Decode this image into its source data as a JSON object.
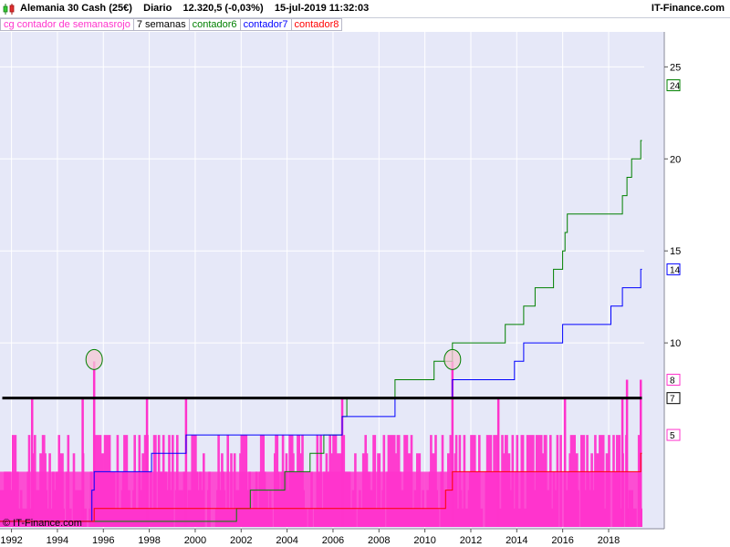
{
  "header": {
    "instrument": "Alemania 30 Cash (25€)",
    "period": "Diario",
    "price": "12.320,5 (-0,03%)",
    "datetime": "15-jul-2019 11:32:03",
    "brand": "IT-Finance.com"
  },
  "legend": [
    {
      "label": "cg contador de semanasrojo",
      "color": "#ff33cc"
    },
    {
      "label": "7 semanas",
      "color": "#000000"
    },
    {
      "label": "contador6",
      "color": "#008000"
    },
    {
      "label": "contador7",
      "color": "#0000ff"
    },
    {
      "label": "contador8",
      "color": "#ff0000"
    }
  ],
  "watermark": "© IT-Finance.com",
  "colors": {
    "plot_background": "#e6e8f8",
    "grid": "#ffffff",
    "histogram": "#ff33cc",
    "contador6": "#008000",
    "contador7": "#0000ff",
    "contador8": "#ff0000",
    "threshold": "#000000"
  },
  "chart_data": {
    "type": "line",
    "x_unit": "year",
    "xlim": [
      1991.5,
      2019.55
    ],
    "ylim": [
      -0.1,
      26.9
    ],
    "grid": true,
    "legend_position": "top-left",
    "x_ticks": [
      {
        "value": 1992,
        "label": "1992"
      },
      {
        "value": 1994,
        "label": "1994"
      },
      {
        "value": 1996,
        "label": "1996"
      },
      {
        "value": 1998,
        "label": "1998"
      },
      {
        "value": 2000,
        "label": "2000"
      },
      {
        "value": 2002,
        "label": "2002"
      },
      {
        "value": 2004,
        "label": "2004"
      },
      {
        "value": 2006,
        "label": "2006"
      },
      {
        "value": 2008,
        "label": "2008"
      },
      {
        "value": 2010,
        "label": "2010"
      },
      {
        "value": 2012,
        "label": "2012"
      },
      {
        "value": 2014,
        "label": "2014"
      },
      {
        "value": 2016,
        "label": "2016"
      },
      {
        "value": 2018,
        "label": "2018"
      }
    ],
    "y_ticks": [
      {
        "value": 10,
        "label": "10"
      },
      {
        "value": 15,
        "label": "15"
      },
      {
        "value": 20,
        "label": "20"
      },
      {
        "value": 25,
        "label": "25"
      }
    ],
    "markers": [
      {
        "value": 24,
        "label": "24",
        "color": "#008000"
      },
      {
        "value": 14,
        "label": "14",
        "color": "#0000ff"
      },
      {
        "value": 8,
        "label": "8",
        "color": "#ff33cc"
      },
      {
        "value": 7,
        "label": "7",
        "color": "#000000"
      },
      {
        "value": 5,
        "label": "5",
        "color": "#ff33cc"
      }
    ],
    "threshold": 7,
    "histogram": {
      "name": "cg contador de semanasrojo",
      "spikes": [
        {
          "x": 1992.9,
          "y": 7
        },
        {
          "x": 1995.1,
          "y": 7
        },
        {
          "x": 1995.6,
          "y": 9
        },
        {
          "x": 1997.9,
          "y": 7
        },
        {
          "x": 1999.6,
          "y": 7
        },
        {
          "x": 2006.4,
          "y": 7
        },
        {
          "x": 2011.2,
          "y": 9
        },
        {
          "x": 2013.2,
          "y": 7
        },
        {
          "x": 2016.1,
          "y": 7
        },
        {
          "x": 2018.6,
          "y": 7
        },
        {
          "x": 2018.8,
          "y": 8
        },
        {
          "x": 2019.4,
          "y": 8
        }
      ]
    },
    "highlights": [
      {
        "x": 1995.6,
        "y": 9
      },
      {
        "x": 2011.2,
        "y": 9
      }
    ],
    "series": [
      {
        "name": "contador6",
        "color": "#008000",
        "steps": [
          [
            1991.5,
            -1
          ],
          [
            1999.6,
            5
          ],
          [
            1999.75,
            6
          ],
          [
            2000.0,
            7
          ],
          [
            2000.8,
            8
          ],
          [
            2001.8,
            9
          ],
          [
            2002.4,
            10
          ],
          [
            2003.9,
            11
          ],
          [
            2005.0,
            12
          ],
          [
            2005.6,
            13
          ],
          [
            2006.4,
            14
          ],
          [
            2006.6,
            15
          ],
          [
            2008.7,
            16
          ],
          [
            2010.4,
            17
          ],
          [
            2011.2,
            18
          ],
          [
            2013.5,
            19
          ],
          [
            2014.3,
            20
          ],
          [
            2014.8,
            21
          ],
          [
            2015.6,
            22
          ],
          [
            2016.0,
            23
          ],
          [
            2016.1,
            24
          ],
          [
            2016.2,
            25
          ],
          [
            2018.6,
            26
          ],
          [
            2018.8,
            27
          ],
          [
            2019.0,
            28
          ],
          [
            2019.4,
            29
          ]
        ],
        "base": -8
      },
      {
        "name": "contador7",
        "color": "#0000ff",
        "steps": [
          [
            1991.5,
            1
          ],
          [
            1995.5,
            3
          ],
          [
            1995.6,
            4
          ],
          [
            1998.1,
            5
          ],
          [
            1999.6,
            6
          ],
          [
            2002.4,
            6
          ],
          [
            2006.4,
            7
          ],
          [
            2008.7,
            8
          ],
          [
            2011.2,
            9
          ],
          [
            2013.9,
            10
          ],
          [
            2014.3,
            11
          ],
          [
            2016.0,
            12
          ],
          [
            2018.1,
            13
          ],
          [
            2018.6,
            14
          ],
          [
            2019.4,
            15
          ]
        ],
        "base": -1
      },
      {
        "name": "contador8",
        "color": "#ff0000",
        "steps": [
          [
            1991.5,
            0
          ],
          [
            1992.9,
            1
          ],
          [
            1995.1,
            2
          ],
          [
            1995.6,
            3
          ],
          [
            2010.9,
            4
          ],
          [
            2011.2,
            5
          ],
          [
            2018.8,
            5
          ],
          [
            2019.4,
            6
          ]
        ],
        "base": -2
      }
    ]
  }
}
